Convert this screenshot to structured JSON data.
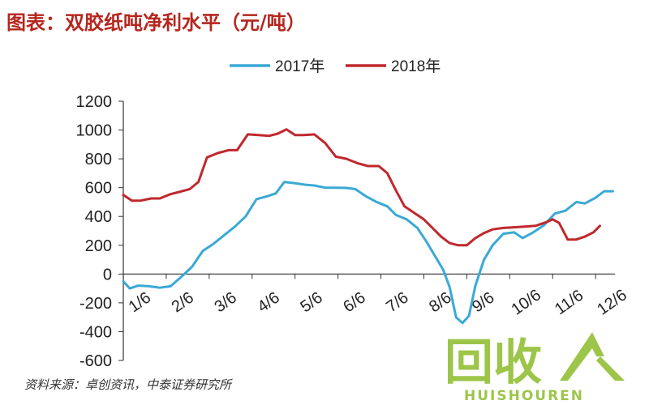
{
  "title": "图表：双胶纸吨净利水平（元/吨）",
  "source": "资料来源：卓创资讯，中泰证券研究所",
  "watermark": {
    "text": "回收",
    "subtext": "HUISHOUREN",
    "color": "#8dbb2a"
  },
  "chart_data": {
    "type": "line",
    "title": "图表：双胶纸吨净利水平（元/吨）",
    "xlabel": "",
    "ylabel": "",
    "ylim": [
      -600,
      1200
    ],
    "yticks": [
      1200,
      1000,
      800,
      600,
      400,
      200,
      0,
      -200,
      -400,
      -600
    ],
    "x_tick_labels": [
      "1/6",
      "2/6",
      "3/6",
      "4/6",
      "5/6",
      "6/6",
      "7/6",
      "8/6",
      "9/6",
      "10/6",
      "11/6",
      "12/6"
    ],
    "x_domain": [
      0,
      11.45
    ],
    "legend_position": "top",
    "grid": false,
    "series": [
      {
        "name": "2017年",
        "color": "#3aa9d6",
        "points": [
          [
            0.0,
            -50
          ],
          [
            0.15,
            -100
          ],
          [
            0.35,
            -80
          ],
          [
            0.6,
            -85
          ],
          [
            0.85,
            -95
          ],
          [
            1.1,
            -85
          ],
          [
            1.35,
            -20
          ],
          [
            1.6,
            50
          ],
          [
            1.85,
            160
          ],
          [
            2.1,
            210
          ],
          [
            2.35,
            270
          ],
          [
            2.6,
            330
          ],
          [
            2.85,
            400
          ],
          [
            3.1,
            520
          ],
          [
            3.35,
            540
          ],
          [
            3.55,
            560
          ],
          [
            3.75,
            640
          ],
          [
            4.0,
            630
          ],
          [
            4.25,
            620
          ],
          [
            4.45,
            615
          ],
          [
            4.7,
            600
          ],
          [
            4.95,
            600
          ],
          [
            5.2,
            598
          ],
          [
            5.4,
            590
          ],
          [
            5.65,
            540
          ],
          [
            5.9,
            500
          ],
          [
            6.15,
            470
          ],
          [
            6.35,
            410
          ],
          [
            6.6,
            380
          ],
          [
            6.85,
            320
          ],
          [
            7.05,
            230
          ],
          [
            7.25,
            130
          ],
          [
            7.45,
            30
          ],
          [
            7.6,
            -90
          ],
          [
            7.75,
            -300
          ],
          [
            7.9,
            -340
          ],
          [
            8.05,
            -290
          ],
          [
            8.2,
            -80
          ],
          [
            8.4,
            100
          ],
          [
            8.6,
            200
          ],
          [
            8.85,
            280
          ],
          [
            9.1,
            290
          ],
          [
            9.3,
            250
          ],
          [
            9.55,
            290
          ],
          [
            9.8,
            340
          ],
          [
            10.05,
            420
          ],
          [
            10.3,
            440
          ],
          [
            10.55,
            500
          ],
          [
            10.75,
            490
          ],
          [
            11.0,
            530
          ],
          [
            11.2,
            575
          ],
          [
            11.4,
            575
          ]
        ]
      },
      {
        "name": "2018年",
        "color": "#c0282d",
        "points": [
          [
            0.0,
            550
          ],
          [
            0.2,
            510
          ],
          [
            0.4,
            510
          ],
          [
            0.65,
            525
          ],
          [
            0.85,
            525
          ],
          [
            1.1,
            555
          ],
          [
            1.3,
            570
          ],
          [
            1.55,
            590
          ],
          [
            1.75,
            640
          ],
          [
            1.95,
            810
          ],
          [
            2.2,
            840
          ],
          [
            2.45,
            860
          ],
          [
            2.65,
            860
          ],
          [
            2.9,
            970
          ],
          [
            3.15,
            965
          ],
          [
            3.4,
            960
          ],
          [
            3.6,
            975
          ],
          [
            3.8,
            1005
          ],
          [
            4.0,
            965
          ],
          [
            4.2,
            965
          ],
          [
            4.45,
            970
          ],
          [
            4.7,
            910
          ],
          [
            4.95,
            815
          ],
          [
            5.2,
            800
          ],
          [
            5.45,
            770
          ],
          [
            5.7,
            750
          ],
          [
            5.95,
            750
          ],
          [
            6.15,
            700
          ],
          [
            6.35,
            580
          ],
          [
            6.55,
            470
          ],
          [
            6.8,
            420
          ],
          [
            7.0,
            380
          ],
          [
            7.2,
            320
          ],
          [
            7.4,
            260
          ],
          [
            7.6,
            215
          ],
          [
            7.8,
            200
          ],
          [
            8.0,
            200
          ],
          [
            8.2,
            250
          ],
          [
            8.4,
            285
          ],
          [
            8.6,
            310
          ],
          [
            8.85,
            320
          ],
          [
            9.1,
            325
          ],
          [
            9.35,
            330
          ],
          [
            9.6,
            335
          ],
          [
            9.85,
            360
          ],
          [
            10.0,
            380
          ],
          [
            10.15,
            355
          ],
          [
            10.35,
            240
          ],
          [
            10.55,
            240
          ],
          [
            10.75,
            260
          ],
          [
            10.95,
            290
          ],
          [
            11.1,
            335
          ]
        ]
      }
    ]
  }
}
